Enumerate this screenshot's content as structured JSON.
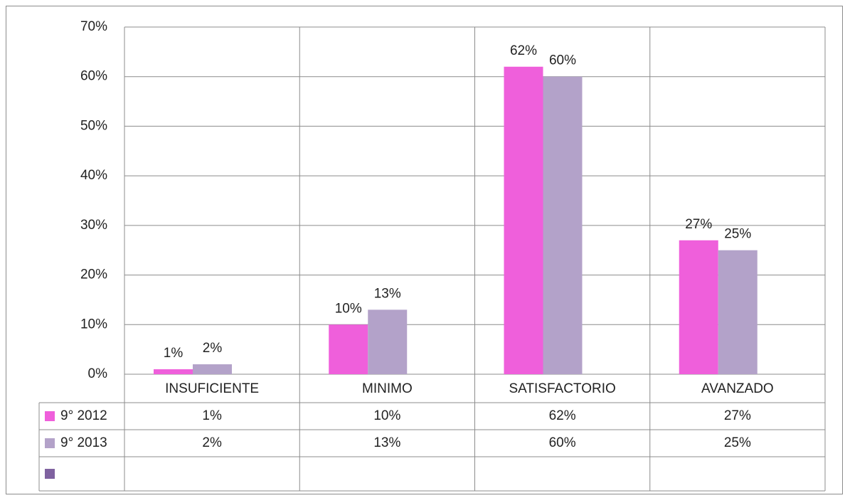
{
  "chart_data": {
    "type": "bar",
    "categories": [
      "INSUFICIENTE",
      "MINIMO",
      "SATISFACTORIO",
      "AVANZADO"
    ],
    "series": [
      {
        "name": "9° 2012",
        "color": "#ef5fdb",
        "values": [
          1,
          10,
          62,
          27
        ],
        "value_labels": [
          "1%",
          "10%",
          "62%",
          "27%"
        ]
      },
      {
        "name": "9° 2013",
        "color": "#b3a2c9",
        "values": [
          2,
          13,
          60,
          25
        ],
        "value_labels": [
          "2%",
          "13%",
          "60%",
          "25%"
        ]
      },
      {
        "color": "#7f62a0",
        "values": [
          null,
          null,
          null,
          null
        ]
      }
    ],
    "ylim": [
      0,
      70
    ],
    "yticks": [
      {
        "value": 0,
        "label": "0%"
      },
      {
        "value": 10,
        "label": "10%"
      },
      {
        "value": 20,
        "label": "20%"
      },
      {
        "value": 30,
        "label": "30%"
      },
      {
        "value": 40,
        "label": "40%"
      },
      {
        "value": 50,
        "label": "50%"
      },
      {
        "value": 60,
        "label": "60%"
      },
      {
        "value": 70,
        "label": "70%"
      }
    ],
    "grid": true,
    "data_table": true
  }
}
